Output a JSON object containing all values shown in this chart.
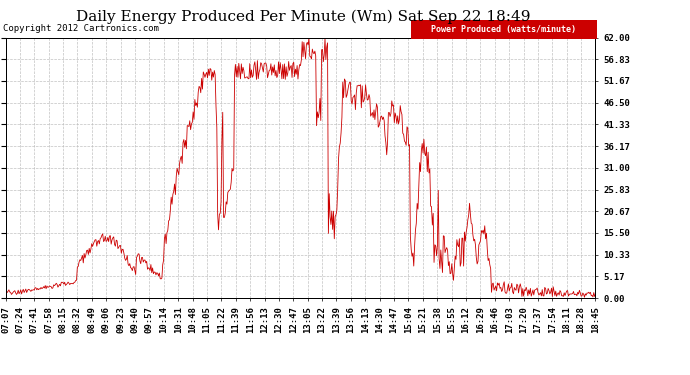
{
  "title": "Daily Energy Produced Per Minute (Wm) Sat Sep 22 18:49",
  "copyright": "Copyright 2012 Cartronics.com",
  "legend_label": "Power Produced (watts/minute)",
  "legend_bg": "#cc0000",
  "line_color": "#cc0000",
  "bg_color": "#ffffff",
  "plot_bg_color": "#ffffff",
  "grid_color": "#bbbbbb",
  "ylim": [
    0.0,
    62.0
  ],
  "yticks": [
    0.0,
    5.17,
    10.33,
    15.5,
    20.67,
    25.83,
    31.0,
    36.17,
    41.33,
    46.5,
    51.67,
    56.83,
    62.0
  ],
  "xtick_labels": [
    "07:07",
    "07:24",
    "07:41",
    "07:58",
    "08:15",
    "08:32",
    "08:49",
    "09:06",
    "09:23",
    "09:40",
    "09:57",
    "10:14",
    "10:31",
    "10:48",
    "11:05",
    "11:22",
    "11:39",
    "11:56",
    "12:13",
    "12:30",
    "12:47",
    "13:05",
    "13:22",
    "13:39",
    "13:56",
    "14:13",
    "14:30",
    "14:47",
    "15:04",
    "15:21",
    "15:38",
    "15:55",
    "16:12",
    "16:29",
    "16:46",
    "17:03",
    "17:20",
    "17:37",
    "17:54",
    "18:11",
    "18:28",
    "18:45"
  ],
  "title_fontsize": 11,
  "label_fontsize": 6.5,
  "copyright_fontsize": 6.5
}
